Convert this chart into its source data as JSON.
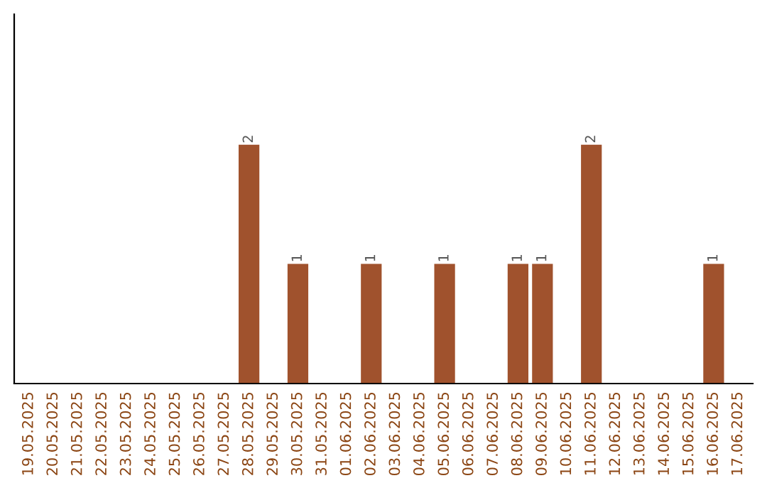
{
  "chart_data": {
    "type": "bar",
    "categories": [
      "19.05.2025",
      "20.05.2025",
      "21.05.2025",
      "22.05.2025",
      "23.05.2025",
      "24.05.2025",
      "25.05.2025",
      "26.05.2025",
      "27.05.2025",
      "28.05.2025",
      "29.05.2025",
      "30.05.2025",
      "31.05.2025",
      "01.06.2025",
      "02.06.2025",
      "03.06.2025",
      "04.06.2025",
      "05.06.2025",
      "06.06.2025",
      "07.06.2025",
      "08.06.2025",
      "09.06.2025",
      "10.06.2025",
      "11.06.2025",
      "12.06.2025",
      "13.06.2025",
      "14.06.2025",
      "15.06.2025",
      "16.06.2025",
      "17.06.2025"
    ],
    "values": [
      0,
      0,
      0,
      0,
      0,
      0,
      0,
      0,
      0,
      2,
      0,
      1,
      0,
      0,
      1,
      0,
      0,
      1,
      0,
      0,
      1,
      1,
      0,
      2,
      0,
      0,
      0,
      0,
      1,
      0
    ],
    "value_labels": [
      null,
      null,
      null,
      null,
      null,
      null,
      null,
      null,
      null,
      "2",
      null,
      "1",
      null,
      null,
      "1",
      null,
      null,
      "1",
      null,
      null,
      "1",
      "1",
      null,
      "2",
      null,
      null,
      null,
      null,
      "1",
      null
    ],
    "color": "#a0522d",
    "ylim": [
      0,
      3.1
    ],
    "tick_labels": "x",
    "grid": false,
    "legend": false
  }
}
